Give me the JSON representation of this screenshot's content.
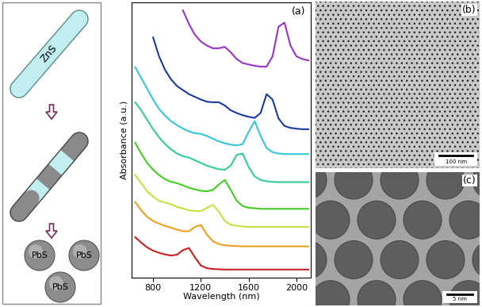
{
  "schematic": {
    "rod_label": "ZnS",
    "particle_labels": [
      "PbS",
      "PbS",
      "PbS"
    ]
  },
  "chart_data": {
    "type": "line",
    "panel_label": "(a)",
    "x_label": "Wavelength (nm)",
    "y_label": "Absorbance (a.u.)",
    "x": [
      650,
      700,
      750,
      800,
      850,
      900,
      950,
      1000,
      1050,
      1100,
      1150,
      1200,
      1250,
      1300,
      1350,
      1400,
      1450,
      1500,
      1550,
      1600,
      1650,
      1700,
      1750,
      1800,
      1850,
      1900,
      1950,
      2000,
      2050,
      2100
    ],
    "series": [
      {
        "color": "#cc1f1f",
        "values": [
          1.5,
          1.3,
          1.12,
          1.0,
          0.92,
          0.86,
          0.82,
          0.85,
          1.02,
          1.1,
          0.75,
          0.45,
          0.35,
          0.32,
          0.31,
          0.3,
          0.3,
          0.3,
          0.3,
          0.3,
          0.3,
          0.3,
          0.3,
          0.3,
          0.3,
          0.3,
          0.3,
          0.3,
          0.3,
          0.3
        ]
      },
      {
        "color": "#f0a020",
        "values": [
          2.8,
          2.5,
          2.25,
          2.1,
          2.0,
          1.92,
          1.85,
          1.78,
          1.72,
          1.72,
          1.88,
          1.95,
          1.6,
          1.35,
          1.24,
          1.2,
          1.18,
          1.17,
          1.16,
          1.16,
          1.16,
          1.16,
          1.16,
          1.16,
          1.16,
          1.16,
          1.16,
          1.16,
          1.16,
          1.16
        ]
      },
      {
        "color": "#c8e040",
        "values": [
          3.8,
          3.5,
          3.2,
          3.0,
          2.85,
          2.78,
          2.72,
          2.62,
          2.56,
          2.5,
          2.47,
          2.47,
          2.58,
          2.7,
          2.45,
          2.1,
          1.96,
          1.92,
          1.9,
          1.88,
          1.88,
          1.88,
          1.88,
          1.88,
          1.88,
          1.88,
          1.88,
          1.88,
          1.88,
          1.88
        ]
      },
      {
        "color": "#44cc22",
        "values": [
          5.0,
          4.6,
          4.25,
          4.0,
          3.8,
          3.65,
          3.55,
          3.5,
          3.42,
          3.33,
          3.27,
          3.22,
          3.2,
          3.25,
          3.45,
          3.62,
          3.25,
          2.85,
          2.65,
          2.59,
          2.57,
          2.55,
          2.55,
          2.55,
          2.55,
          2.55,
          2.55,
          2.55,
          2.55,
          2.55
        ]
      },
      {
        "color": "#33cc99",
        "values": [
          6.5,
          6.2,
          5.85,
          5.5,
          5.2,
          4.95,
          4.75,
          4.6,
          4.5,
          4.45,
          4.35,
          4.25,
          4.15,
          4.08,
          4.02,
          4.0,
          4.15,
          4.55,
          4.6,
          4.1,
          3.75,
          3.62,
          3.57,
          3.55,
          3.54,
          3.54,
          3.54,
          3.54,
          3.54,
          3.54
        ]
      },
      {
        "color": "#33c8d8",
        "values": [
          7.8,
          7.4,
          7.0,
          6.6,
          6.25,
          6.0,
          5.8,
          5.65,
          5.52,
          5.42,
          5.35,
          5.33,
          5.25,
          5.15,
          5.05,
          4.98,
          4.93,
          4.9,
          4.95,
          5.4,
          5.8,
          5.25,
          4.8,
          4.65,
          4.6,
          4.58,
          4.58,
          4.58,
          4.58,
          4.58
        ]
      },
      {
        "color": "#1a3aa0",
        "values": [
          null,
          null,
          null,
          8.9,
          8.2,
          7.7,
          7.35,
          7.1,
          6.95,
          6.8,
          6.7,
          6.6,
          6.52,
          6.5,
          6.5,
          6.38,
          6.2,
          6.1,
          6.02,
          5.96,
          5.92,
          6.1,
          6.8,
          6.6,
          5.9,
          5.62,
          5.55,
          5.52,
          5.5,
          5.5
        ]
      },
      {
        "color": "#9933cc",
        "values": [
          null,
          null,
          null,
          null,
          null,
          null,
          null,
          null,
          9.9,
          9.4,
          9.0,
          8.75,
          8.6,
          8.5,
          8.5,
          8.55,
          8.35,
          8.1,
          7.95,
          7.9,
          7.85,
          7.82,
          7.82,
          8.2,
          9.3,
          9.45,
          8.6,
          8.2,
          8.1,
          8.05
        ]
      }
    ],
    "xlim": [
      620,
      2120
    ],
    "xticks": [
      800,
      1200,
      1600,
      2000
    ],
    "ylim": [
      0,
      10.2
    ],
    "yticks": [],
    "tick_labels": "x"
  },
  "images": [
    {
      "panel_label": "(b)",
      "scale_bar": "100 nm"
    },
    {
      "panel_label": "(c)",
      "scale_bar": "5 nm"
    }
  ]
}
